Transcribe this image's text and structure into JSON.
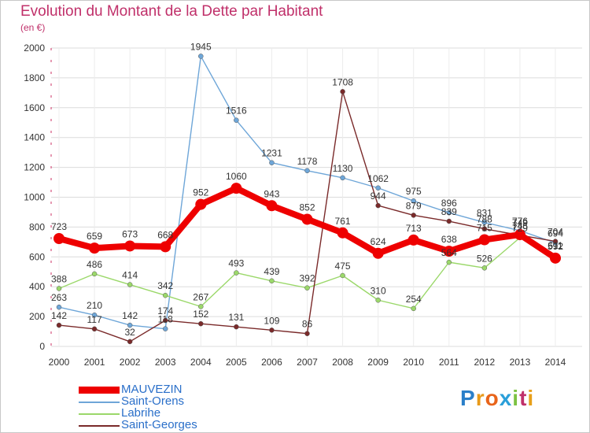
{
  "chart_data": {
    "type": "line",
    "title": "Evolution du Montant de la Dette par Habitant",
    "unit": "(en €)",
    "categories": [
      "2000",
      "2001",
      "2002",
      "2003",
      "2004",
      "2005",
      "2006",
      "2007",
      "2008",
      "2009",
      "2010",
      "2011",
      "2012",
      "2013",
      "2014"
    ],
    "ylim": [
      0,
      2000
    ],
    "yticks": [
      0,
      200,
      400,
      600,
      800,
      1000,
      1200,
      1400,
      1600,
      1800,
      2000
    ],
    "grid": true,
    "legend_position": "bottom-left",
    "series": [
      {
        "name": "MAUVEZIN",
        "color": "#ee0000",
        "values": [
          723,
          659,
          673,
          668,
          952,
          1060,
          943,
          852,
          761,
          624,
          713,
          638,
          715,
          749,
          592
        ]
      },
      {
        "name": "Saint-Orens",
        "color": "#6ea6d8",
        "values": [
          263,
          210,
          142,
          118,
          1945,
          1516,
          1231,
          1178,
          1130,
          1062,
          975,
          896,
          831,
          776,
          694
        ]
      },
      {
        "name": "Labrihe",
        "color": "#9bd86a",
        "values": [
          388,
          486,
          414,
          342,
          267,
          493,
          439,
          392,
          475,
          310,
          254,
          564,
          526,
          729,
          611
        ]
      },
      {
        "name": "Saint-Georges",
        "color": "#7a2a2a",
        "values": [
          142,
          117,
          32,
          174,
          152,
          131,
          109,
          86,
          1708,
          944,
          879,
          839,
          788,
          745,
          704
        ]
      }
    ]
  },
  "logo": {
    "text": "Proxiti"
  }
}
